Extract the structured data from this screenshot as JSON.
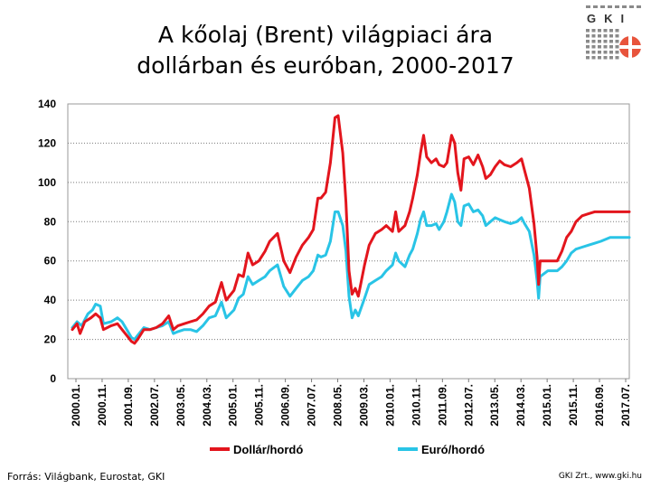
{
  "title_line1": "A kőolaj (Brent) világpiaci ára",
  "title_line2": "dollárban és euróban, 2000-2017",
  "logo_text": "GKI",
  "source": "Forrás: Világbank, Eurostat, GKI",
  "credit": "GKI Zrt., www.gki.hu",
  "colors": {
    "dollar": "#e3151d",
    "euro": "#29c4e6",
    "logo_red": "#e8543c"
  },
  "chart_data": {
    "type": "line",
    "title": "A kőolaj (Brent) világpiaci ára dollárban és euróban, 2000-2017",
    "ylim": [
      0,
      140
    ],
    "yticks": [
      0,
      20,
      40,
      60,
      80,
      100,
      120,
      140
    ],
    "xlim": [
      2000.0,
      2017.917
    ],
    "grid": "horizontal dotted",
    "legend": "bottom",
    "xtick_labels": [
      "2000.01.",
      "2000.11.",
      "2001.09.",
      "2002.07.",
      "2003.05.",
      "2004.03.",
      "2005.01.",
      "2005.11.",
      "2006.09.",
      "2007.07.",
      "2008.05.",
      "2009.03.",
      "2010.01.",
      "2010.11.",
      "2011.09.",
      "2012.07.",
      "2013.05.",
      "2014.03.",
      "2015.01.",
      "2015.11.",
      "2016.09.",
      "2017.07."
    ],
    "series": [
      {
        "name": "Dollár/hordó",
        "color": "#e3151d",
        "points": [
          [
            2000.0,
            25
          ],
          [
            2000.15,
            28
          ],
          [
            2000.25,
            23
          ],
          [
            2000.4,
            29
          ],
          [
            2000.6,
            31
          ],
          [
            2000.75,
            33
          ],
          [
            2000.9,
            31
          ],
          [
            2001.0,
            25
          ],
          [
            2001.25,
            27
          ],
          [
            2001.45,
            28
          ],
          [
            2001.6,
            25
          ],
          [
            2001.75,
            22
          ],
          [
            2001.9,
            19
          ],
          [
            2002.0,
            18
          ],
          [
            2002.1,
            20
          ],
          [
            2002.3,
            25
          ],
          [
            2002.5,
            25
          ],
          [
            2002.7,
            26
          ],
          [
            2002.9,
            28
          ],
          [
            2003.1,
            32
          ],
          [
            2003.25,
            25
          ],
          [
            2003.4,
            27
          ],
          [
            2003.6,
            28
          ],
          [
            2003.8,
            29
          ],
          [
            2004.0,
            30
          ],
          [
            2004.2,
            33
          ],
          [
            2004.4,
            37
          ],
          [
            2004.6,
            39
          ],
          [
            2004.8,
            49
          ],
          [
            2004.95,
            40
          ],
          [
            2005.2,
            45
          ],
          [
            2005.35,
            53
          ],
          [
            2005.5,
            52
          ],
          [
            2005.65,
            64
          ],
          [
            2005.8,
            58
          ],
          [
            2006.0,
            60
          ],
          [
            2006.2,
            65
          ],
          [
            2006.35,
            70
          ],
          [
            2006.6,
            74
          ],
          [
            2006.8,
            60
          ],
          [
            2007.0,
            54
          ],
          [
            2007.2,
            62
          ],
          [
            2007.4,
            68
          ],
          [
            2007.6,
            72
          ],
          [
            2007.75,
            76
          ],
          [
            2007.9,
            92
          ],
          [
            2008.0,
            92
          ],
          [
            2008.15,
            95
          ],
          [
            2008.3,
            110
          ],
          [
            2008.45,
            133
          ],
          [
            2008.55,
            134
          ],
          [
            2008.7,
            115
          ],
          [
            2008.8,
            90
          ],
          [
            2008.9,
            55
          ],
          [
            2009.0,
            43
          ],
          [
            2009.1,
            46
          ],
          [
            2009.2,
            42
          ],
          [
            2009.4,
            58
          ],
          [
            2009.55,
            68
          ],
          [
            2009.75,
            74
          ],
          [
            2009.95,
            76
          ],
          [
            2010.1,
            78
          ],
          [
            2010.3,
            75
          ],
          [
            2010.4,
            85
          ],
          [
            2010.5,
            75
          ],
          [
            2010.7,
            78
          ],
          [
            2010.85,
            85
          ],
          [
            2010.95,
            92
          ],
          [
            2011.1,
            104
          ],
          [
            2011.2,
            115
          ],
          [
            2011.3,
            124
          ],
          [
            2011.4,
            113
          ],
          [
            2011.55,
            110
          ],
          [
            2011.7,
            112
          ],
          [
            2011.8,
            109
          ],
          [
            2011.95,
            108
          ],
          [
            2012.05,
            110
          ],
          [
            2012.2,
            124
          ],
          [
            2012.3,
            120
          ],
          [
            2012.4,
            105
          ],
          [
            2012.5,
            96
          ],
          [
            2012.6,
            112
          ],
          [
            2012.75,
            113
          ],
          [
            2012.9,
            109
          ],
          [
            2013.05,
            114
          ],
          [
            2013.2,
            108
          ],
          [
            2013.3,
            102
          ],
          [
            2013.45,
            104
          ],
          [
            2013.6,
            108
          ],
          [
            2013.75,
            111
          ],
          [
            2013.9,
            109
          ],
          [
            2014.1,
            108
          ],
          [
            2014.3,
            110
          ],
          [
            2014.45,
            112
          ],
          [
            2014.55,
            106
          ],
          [
            2014.7,
            97
          ],
          [
            2014.85,
            79
          ],
          [
            2014.95,
            62
          ],
          [
            2015.0,
            48
          ],
          [
            2015.05,
            60
          ],
          [
            2015.4,
            60
          ],
          [
            2015.6,
            60
          ],
          [
            2015.75,
            65
          ],
          [
            2015.9,
            72
          ],
          [
            2016.05,
            75
          ],
          [
            2016.2,
            80
          ],
          [
            2016.4,
            83
          ],
          [
            2016.6,
            84
          ],
          [
            2016.8,
            85
          ],
          [
            2017.0,
            85
          ],
          [
            2017.917,
            85
          ]
        ]
      },
      {
        "name": "Euró/hordó",
        "color": "#29c4e6",
        "points": [
          [
            2000.0,
            26
          ],
          [
            2000.15,
            29
          ],
          [
            2000.3,
            27
          ],
          [
            2000.5,
            33
          ],
          [
            2000.65,
            35
          ],
          [
            2000.75,
            38
          ],
          [
            2000.9,
            37
          ],
          [
            2001.0,
            28
          ],
          [
            2001.25,
            29
          ],
          [
            2001.45,
            31
          ],
          [
            2001.6,
            29
          ],
          [
            2001.75,
            25
          ],
          [
            2001.9,
            21
          ],
          [
            2002.0,
            20
          ],
          [
            2002.1,
            22
          ],
          [
            2002.3,
            26
          ],
          [
            2002.5,
            25
          ],
          [
            2002.7,
            26
          ],
          [
            2002.9,
            27
          ],
          [
            2003.1,
            29
          ],
          [
            2003.25,
            23
          ],
          [
            2003.4,
            24
          ],
          [
            2003.6,
            25
          ],
          [
            2003.8,
            25
          ],
          [
            2004.0,
            24
          ],
          [
            2004.2,
            27
          ],
          [
            2004.4,
            31
          ],
          [
            2004.6,
            32
          ],
          [
            2004.8,
            39
          ],
          [
            2004.95,
            31
          ],
          [
            2005.2,
            35
          ],
          [
            2005.35,
            41
          ],
          [
            2005.5,
            43
          ],
          [
            2005.65,
            52
          ],
          [
            2005.8,
            48
          ],
          [
            2006.0,
            50
          ],
          [
            2006.2,
            52
          ],
          [
            2006.35,
            55
          ],
          [
            2006.6,
            58
          ],
          [
            2006.8,
            47
          ],
          [
            2007.0,
            42
          ],
          [
            2007.2,
            46
          ],
          [
            2007.4,
            50
          ],
          [
            2007.6,
            52
          ],
          [
            2007.75,
            55
          ],
          [
            2007.9,
            63
          ],
          [
            2008.0,
            62
          ],
          [
            2008.15,
            63
          ],
          [
            2008.3,
            70
          ],
          [
            2008.45,
            85
          ],
          [
            2008.55,
            85
          ],
          [
            2008.7,
            78
          ],
          [
            2008.8,
            65
          ],
          [
            2008.9,
            42
          ],
          [
            2009.0,
            31
          ],
          [
            2009.1,
            35
          ],
          [
            2009.2,
            32
          ],
          [
            2009.4,
            41
          ],
          [
            2009.55,
            48
          ],
          [
            2009.75,
            50
          ],
          [
            2009.95,
            52
          ],
          [
            2010.1,
            55
          ],
          [
            2010.3,
            58
          ],
          [
            2010.4,
            64
          ],
          [
            2010.5,
            60
          ],
          [
            2010.7,
            57
          ],
          [
            2010.85,
            63
          ],
          [
            2010.95,
            66
          ],
          [
            2011.1,
            74
          ],
          [
            2011.2,
            81
          ],
          [
            2011.3,
            85
          ],
          [
            2011.4,
            78
          ],
          [
            2011.55,
            78
          ],
          [
            2011.7,
            79
          ],
          [
            2011.8,
            76
          ],
          [
            2011.95,
            80
          ],
          [
            2012.05,
            85
          ],
          [
            2012.2,
            94
          ],
          [
            2012.3,
            90
          ],
          [
            2012.4,
            80
          ],
          [
            2012.5,
            78
          ],
          [
            2012.6,
            88
          ],
          [
            2012.75,
            89
          ],
          [
            2012.9,
            85
          ],
          [
            2013.05,
            86
          ],
          [
            2013.2,
            83
          ],
          [
            2013.3,
            78
          ],
          [
            2013.45,
            80
          ],
          [
            2013.6,
            82
          ],
          [
            2013.75,
            81
          ],
          [
            2013.9,
            80
          ],
          [
            2014.1,
            79
          ],
          [
            2014.3,
            80
          ],
          [
            2014.45,
            82
          ],
          [
            2014.55,
            79
          ],
          [
            2014.7,
            75
          ],
          [
            2014.85,
            63
          ],
          [
            2014.95,
            50
          ],
          [
            2015.0,
            41
          ],
          [
            2015.05,
            52
          ],
          [
            2015.3,
            55
          ],
          [
            2015.6,
            55
          ],
          [
            2015.75,
            57
          ],
          [
            2015.9,
            60
          ],
          [
            2016.05,
            64
          ],
          [
            2016.2,
            66
          ],
          [
            2016.4,
            67
          ],
          [
            2016.6,
            68
          ],
          [
            2016.8,
            69
          ],
          [
            2017.0,
            70
          ],
          [
            2017.3,
            72
          ],
          [
            2017.917,
            72
          ]
        ]
      }
    ]
  }
}
